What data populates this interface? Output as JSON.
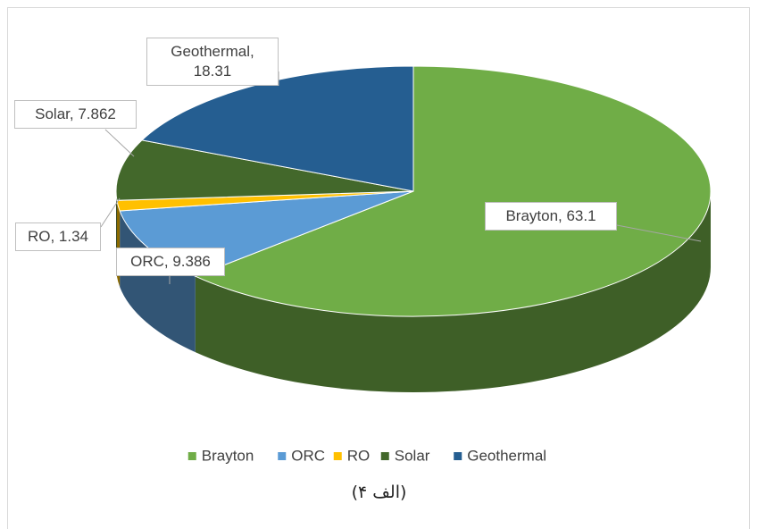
{
  "chart_data": {
    "type": "pie",
    "categories": [
      "Brayton",
      "ORC",
      "RO",
      "Solar",
      "Geothermal"
    ],
    "values": [
      63.1,
      9.386,
      1.34,
      7.862,
      18.31
    ],
    "value_labels": [
      "Brayton, 63.1",
      "ORC, 9.386",
      "RO, 1.34",
      "Solar, 7.862",
      "Geothermal, 18.31"
    ],
    "colors": [
      "#70ad47",
      "#5b9bd5",
      "#ffc000",
      "#43682b",
      "#255e91"
    ],
    "legend": "bottom",
    "caption": "(الف ۴)"
  }
}
